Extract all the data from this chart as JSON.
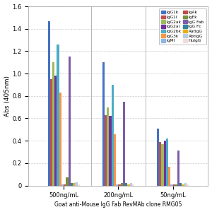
{
  "title": "Goat anti-Mouse IgG Fab RevMAb clone RMG05",
  "ylabel": "Abs (405nm)",
  "groups": [
    "500ng/mL",
    "200ng/mL",
    "50ng/mL"
  ],
  "series": [
    {
      "label": "IgG1k",
      "color": "#4472C4",
      "values": [
        1.47,
        1.1,
        0.51
      ]
    },
    {
      "label": "IgG1l",
      "color": "#C0504D",
      "values": [
        0.95,
        0.63,
        0.39
      ]
    },
    {
      "label": "IgG2ak",
      "color": "#9BBB59",
      "values": [
        1.1,
        0.7,
        0.37
      ]
    },
    {
      "label": "IgG2al",
      "color": "#7030A0",
      "values": [
        0.98,
        0.62,
        0.4
      ]
    },
    {
      "label": "IgG2bk",
      "color": "#4BACC6",
      "values": [
        1.26,
        0.9,
        0.42
      ]
    },
    {
      "label": "IgG3k",
      "color": "#F79646",
      "values": [
        0.83,
        0.46,
        0.17
      ]
    },
    {
      "label": "IgMl",
      "color": "#8EB4E3",
      "values": [
        0.01,
        0.01,
        0.01
      ]
    },
    {
      "label": "IgAk",
      "color": "#BE4B48",
      "values": [
        0.01,
        0.01,
        0.01
      ]
    },
    {
      "label": "IgEk",
      "color": "#76923C",
      "values": [
        0.07,
        0.02,
        0.01
      ]
    },
    {
      "label": "IgG Fab",
      "color": "#7B5EA7",
      "values": [
        1.15,
        0.75,
        0.31
      ]
    },
    {
      "label": "IgG Fc",
      "color": "#31849B",
      "values": [
        0.02,
        0.02,
        0.02
      ]
    },
    {
      "label": "RatIgG",
      "color": "#E6B015",
      "values": [
        0.02,
        0.01,
        0.01
      ]
    },
    {
      "label": "RbtIgG",
      "color": "#B8CCE4",
      "values": [
        0.03,
        0.02,
        0.02
      ]
    },
    {
      "label": "HuIgG",
      "color": "#F2DCDB",
      "values": [
        0.01,
        0.01,
        0.01
      ]
    }
  ],
  "legend_order_col1": [
    "IgG1k",
    "IgG2ak",
    "IgG2bk",
    "IgMl",
    "IgEk",
    "IgG Fc",
    "RbtIgG"
  ],
  "legend_order_col2": [
    "IgG1l",
    "IgG2al",
    "IgG3k",
    "IgAk",
    "IgG Fab",
    "RatIgG",
    "HuIgG"
  ],
  "ylim": [
    0,
    1.6
  ],
  "yticks": [
    0.0,
    0.2,
    0.4,
    0.6,
    0.8,
    1.0,
    1.2,
    1.4,
    1.6
  ],
  "bg_color": "#FFFFFF",
  "grid_color": "#CCCCCC",
  "plot_bg": "#F0F0F0"
}
